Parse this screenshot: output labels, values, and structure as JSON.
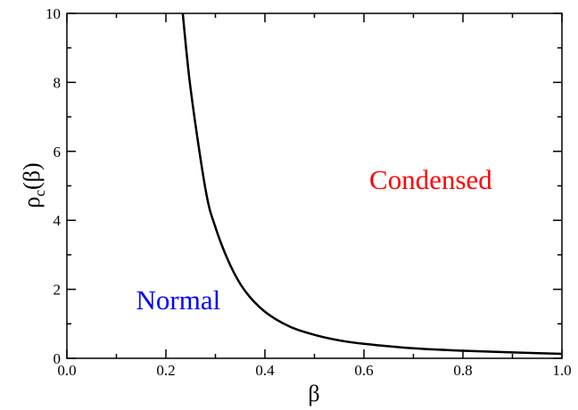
{
  "chart_data": {
    "type": "line",
    "title": "",
    "xlabel": "β",
    "ylabel": {
      "base": "ρ",
      "subscript": "c",
      "suffix": "(β)"
    },
    "xlim": [
      0.0,
      1.0
    ],
    "ylim": [
      0,
      10
    ],
    "x_ticks": [
      "0.0",
      "0.2",
      "0.4",
      "0.6",
      "0.8",
      "1.0"
    ],
    "y_ticks": [
      "0",
      "2",
      "4",
      "6",
      "8",
      "10"
    ],
    "x_tick_values": [
      0.0,
      0.2,
      0.4,
      0.6,
      0.8,
      1.0
    ],
    "y_tick_values": [
      0,
      2,
      4,
      6,
      8,
      10
    ],
    "grid": false,
    "series": [
      {
        "color": "#000000",
        "x": [
          0.234,
          0.25,
          0.28,
          0.3,
          0.33,
          0.36,
          0.4,
          0.45,
          0.5,
          0.55,
          0.6,
          0.7,
          0.8,
          0.9,
          1.0
        ],
        "y": [
          10.0,
          7.8,
          4.9,
          3.8,
          2.7,
          1.95,
          1.35,
          0.92,
          0.68,
          0.52,
          0.42,
          0.29,
          0.22,
          0.17,
          0.13
        ]
      }
    ],
    "annotations": [
      {
        "text": "Condensed",
        "color": "#ff0000",
        "x": 0.735,
        "y": 5.2
      },
      {
        "text": "Normal",
        "color": "#0000ff",
        "x": 0.225,
        "y": 1.7
      }
    ]
  }
}
